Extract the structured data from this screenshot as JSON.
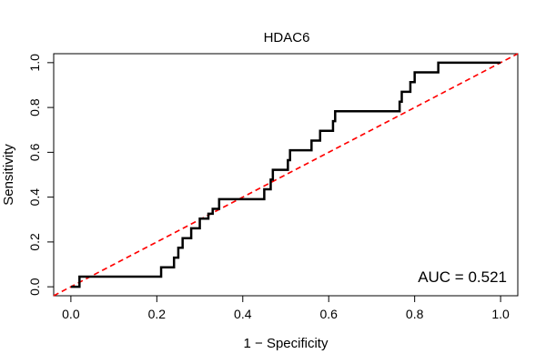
{
  "chart_data": {
    "type": "line",
    "title": "HDAC6",
    "xlabel": "1 − Specificity",
    "ylabel": "Sensitivity",
    "xlim": [
      -0.04,
      1.04
    ],
    "ylim": [
      -0.04,
      1.04
    ],
    "x_ticks": [
      0.0,
      0.2,
      0.4,
      0.6,
      0.8,
      1.0
    ],
    "x_tick_labels": [
      "0.0",
      "0.2",
      "0.4",
      "0.6",
      "0.8",
      "1.0"
    ],
    "y_ticks": [
      0.0,
      0.2,
      0.4,
      0.6,
      0.8,
      1.0
    ],
    "y_tick_labels": [
      "0.0",
      "0.2",
      "0.4",
      "0.6",
      "0.8",
      "1.0"
    ],
    "annotation": "AUC = 0.521",
    "grid": false,
    "series": [
      {
        "color": "#000000",
        "points": [
          [
            0.0,
            0.0
          ],
          [
            0.02,
            0.0
          ],
          [
            0.02,
            0.045
          ],
          [
            0.21,
            0.045
          ],
          [
            0.21,
            0.087
          ],
          [
            0.24,
            0.087
          ],
          [
            0.24,
            0.13
          ],
          [
            0.25,
            0.13
          ],
          [
            0.25,
            0.174
          ],
          [
            0.26,
            0.174
          ],
          [
            0.26,
            0.217
          ],
          [
            0.28,
            0.217
          ],
          [
            0.28,
            0.261
          ],
          [
            0.3,
            0.261
          ],
          [
            0.3,
            0.304
          ],
          [
            0.32,
            0.304
          ],
          [
            0.32,
            0.326
          ],
          [
            0.33,
            0.326
          ],
          [
            0.33,
            0.348
          ],
          [
            0.345,
            0.348
          ],
          [
            0.345,
            0.391
          ],
          [
            0.45,
            0.391
          ],
          [
            0.45,
            0.435
          ],
          [
            0.465,
            0.435
          ],
          [
            0.465,
            0.478
          ],
          [
            0.47,
            0.478
          ],
          [
            0.47,
            0.522
          ],
          [
            0.505,
            0.522
          ],
          [
            0.505,
            0.565
          ],
          [
            0.51,
            0.565
          ],
          [
            0.51,
            0.609
          ],
          [
            0.56,
            0.609
          ],
          [
            0.56,
            0.652
          ],
          [
            0.58,
            0.652
          ],
          [
            0.58,
            0.696
          ],
          [
            0.61,
            0.696
          ],
          [
            0.61,
            0.739
          ],
          [
            0.615,
            0.739
          ],
          [
            0.615,
            0.783
          ],
          [
            0.765,
            0.783
          ],
          [
            0.765,
            0.826
          ],
          [
            0.77,
            0.826
          ],
          [
            0.77,
            0.87
          ],
          [
            0.79,
            0.87
          ],
          [
            0.79,
            0.913
          ],
          [
            0.8,
            0.913
          ],
          [
            0.8,
            0.957
          ],
          [
            0.855,
            0.957
          ],
          [
            0.855,
            1.0
          ],
          [
            1.0,
            1.0
          ]
        ]
      }
    ],
    "reference_line": {
      "color": "#ff0000",
      "points": [
        [
          -0.04,
          -0.04
        ],
        [
          1.04,
          1.04
        ]
      ]
    }
  }
}
